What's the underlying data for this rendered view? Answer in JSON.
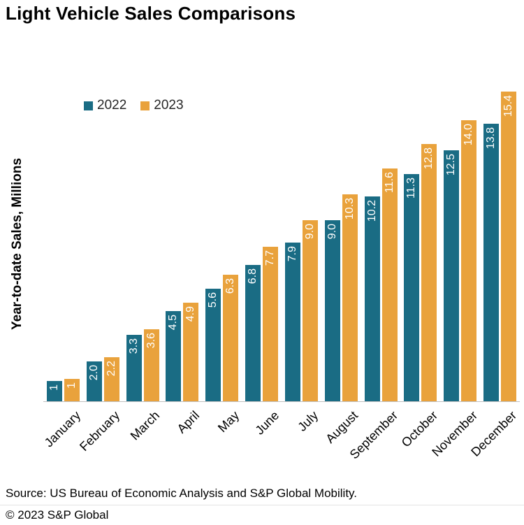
{
  "title": "Light Vehicle Sales Comparisons",
  "y_axis_title": "Year-to-date Sales, Millions",
  "legend": {
    "items": [
      {
        "label": "2022",
        "color": "#1a6c84"
      },
      {
        "label": "2023",
        "color": "#e9a23c"
      }
    ]
  },
  "footer": {
    "source": "Source: US Bureau of Economic Analysis and S&P Global Mobility.",
    "copyright": "© 2023 S&P Global"
  },
  "chart_data": {
    "type": "bar",
    "title": "Light Vehicle Sales Comparisons",
    "xlabel": "",
    "ylabel": "Year-to-date Sales, Millions",
    "categories": [
      "January",
      "February",
      "March",
      "April",
      "May",
      "June",
      "July",
      "August",
      "September",
      "October",
      "November",
      "December"
    ],
    "series": [
      {
        "name": "2022",
        "color": "#1a6c84",
        "values": [
          1.0,
          2.0,
          3.3,
          4.5,
          5.6,
          6.8,
          7.9,
          9.0,
          10.2,
          11.3,
          12.5,
          13.8
        ],
        "data_labels": [
          "1",
          "2.0",
          "3.3",
          "4.5",
          "5.6",
          "6.8",
          "7.9",
          "9.0",
          "10.2",
          "11.3",
          "12.5",
          "13.8"
        ]
      },
      {
        "name": "2023",
        "color": "#e9a23c",
        "values": [
          1.1,
          2.2,
          3.6,
          4.9,
          6.3,
          7.7,
          9.0,
          10.3,
          11.6,
          12.8,
          14.0,
          15.4
        ],
        "data_labels": [
          "1",
          "2.2",
          "3.6",
          "4.9",
          "6.3",
          "7.7",
          "9.0",
          "10.3",
          "11.6",
          "12.8",
          "14.0",
          "15.4"
        ]
      }
    ],
    "ylim": [
      0,
      16
    ],
    "grid": false,
    "legend_position": "top-left",
    "data_label_color": "#ffffff",
    "data_label_rotation": 90,
    "x_label_rotation": 45
  }
}
